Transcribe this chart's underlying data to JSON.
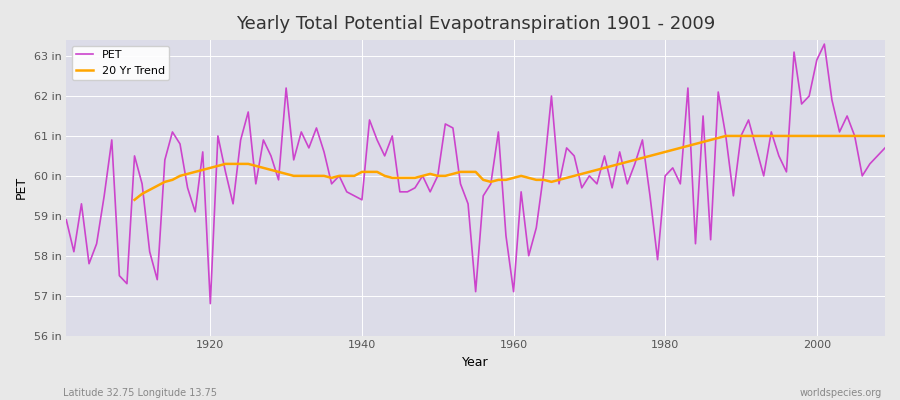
{
  "title": "Yearly Total Potential Evapotranspiration 1901 - 2009",
  "xlabel": "Year",
  "ylabel": "PET",
  "subtitle_left": "Latitude 32.75 Longitude 13.75",
  "subtitle_right": "worldspecies.org",
  "ylim": [
    56,
    63.4
  ],
  "yticks": [
    56,
    57,
    58,
    59,
    60,
    61,
    62,
    63
  ],
  "ytick_labels": [
    "56 in",
    "57 in",
    "58 in",
    "59 in",
    "60 in",
    "61 in",
    "62 in",
    "63 in"
  ],
  "pet_color": "#cc44cc",
  "trend_color": "#FFA500",
  "bg_color": "#e8e8e8",
  "plot_bg_color": "#dcdce8",
  "years": [
    1901,
    1902,
    1903,
    1904,
    1905,
    1906,
    1907,
    1908,
    1909,
    1910,
    1911,
    1912,
    1913,
    1914,
    1915,
    1916,
    1917,
    1918,
    1919,
    1920,
    1921,
    1922,
    1923,
    1924,
    1925,
    1926,
    1927,
    1928,
    1929,
    1930,
    1931,
    1932,
    1933,
    1934,
    1935,
    1936,
    1937,
    1938,
    1939,
    1940,
    1941,
    1942,
    1943,
    1944,
    1945,
    1946,
    1947,
    1948,
    1949,
    1950,
    1951,
    1952,
    1953,
    1954,
    1955,
    1956,
    1957,
    1958,
    1959,
    1960,
    1961,
    1962,
    1963,
    1964,
    1965,
    1966,
    1967,
    1968,
    1969,
    1970,
    1971,
    1972,
    1973,
    1974,
    1975,
    1976,
    1977,
    1978,
    1979,
    1980,
    1981,
    1982,
    1983,
    1984,
    1985,
    1986,
    1987,
    1988,
    1989,
    1990,
    1991,
    1992,
    1993,
    1994,
    1995,
    1996,
    1997,
    1998,
    1999,
    2000,
    2001,
    2002,
    2003,
    2004,
    2005,
    2006,
    2007,
    2008,
    2009
  ],
  "pet": [
    58.9,
    58.1,
    59.3,
    57.8,
    58.3,
    59.5,
    60.9,
    57.5,
    57.3,
    60.5,
    59.8,
    58.1,
    57.4,
    60.4,
    61.1,
    60.8,
    59.7,
    59.1,
    60.6,
    56.8,
    61.0,
    60.1,
    59.3,
    60.9,
    61.6,
    59.8,
    60.9,
    60.5,
    59.9,
    62.2,
    60.4,
    61.1,
    60.7,
    61.2,
    60.6,
    59.8,
    60.0,
    59.6,
    59.5,
    59.4,
    61.4,
    60.9,
    60.5,
    61.0,
    59.6,
    59.6,
    59.7,
    60.0,
    59.6,
    60.0,
    61.3,
    61.2,
    59.8,
    59.3,
    57.1,
    59.5,
    59.8,
    61.1,
    58.5,
    57.1,
    59.6,
    58.0,
    58.7,
    60.1,
    62.0,
    59.8,
    60.7,
    60.5,
    59.7,
    60.0,
    59.8,
    60.5,
    59.7,
    60.6,
    59.8,
    60.3,
    60.9,
    59.5,
    57.9,
    60.0,
    60.2,
    59.8,
    62.2,
    58.3,
    61.5,
    58.4,
    62.1,
    61.0,
    59.5,
    61.0,
    61.4,
    60.7,
    60.0,
    61.1,
    60.5,
    60.1,
    63.1,
    61.8,
    62.0,
    62.9,
    63.3,
    61.9,
    61.1,
    61.5,
    61.0,
    60.0,
    60.3,
    60.5,
    60.7
  ],
  "trend_years": [
    1910,
    1911,
    1912,
    1913,
    1914,
    1915,
    1916,
    1917,
    1918,
    1919,
    1920,
    1921,
    1922,
    1923,
    1924,
    1925,
    1926,
    1927,
    1928,
    1929,
    1930,
    1931,
    1932,
    1933,
    1934,
    1935,
    1936,
    1937,
    1938,
    1939,
    1940,
    1941,
    1942,
    1943,
    1944,
    1945,
    1946,
    1947,
    1948,
    1949,
    1950,
    1951,
    1952,
    1953,
    1954,
    1955,
    1956,
    1957,
    1958,
    1959,
    1960,
    1961,
    1962,
    1963,
    1964,
    1965,
    1966,
    1967,
    1968,
    1969,
    1970,
    1971,
    1972,
    1973,
    1974,
    1975,
    1976,
    1977,
    1978,
    1979,
    1980,
    1981,
    1982,
    1983,
    1984,
    1985,
    1986,
    1987,
    1988,
    1989,
    1990,
    1991,
    1992,
    1993,
    1994,
    1995,
    1996,
    1997,
    1998,
    1999,
    2000,
    2001,
    2002,
    2003,
    2004,
    2005,
    2006,
    2007,
    2008,
    2009
  ],
  "trend": [
    59.4,
    59.55,
    59.65,
    59.75,
    59.85,
    59.9,
    60.0,
    60.05,
    60.1,
    60.15,
    60.2,
    60.25,
    60.3,
    60.3,
    60.3,
    60.3,
    60.25,
    60.2,
    60.15,
    60.1,
    60.05,
    60.0,
    60.0,
    60.0,
    60.0,
    60.0,
    59.95,
    60.0,
    60.0,
    60.0,
    60.1,
    60.1,
    60.1,
    60.0,
    59.95,
    59.95,
    59.95,
    59.95,
    60.0,
    60.05,
    60.0,
    60.0,
    60.05,
    60.1,
    60.1,
    60.1,
    59.9,
    59.85,
    59.9,
    59.9,
    59.95,
    60.0,
    59.95,
    59.9,
    59.9,
    59.85,
    59.9,
    59.95,
    60.0,
    60.05,
    60.1,
    60.15,
    60.2,
    60.25,
    60.3,
    60.35,
    60.4,
    60.45,
    60.5,
    60.55,
    60.6,
    60.65,
    60.7,
    60.75,
    60.8,
    60.85,
    60.9,
    60.95,
    61.0,
    61.0,
    61.0,
    61.0,
    61.0,
    61.0,
    61.0,
    61.0,
    61.0,
    61.0,
    61.0,
    61.0,
    61.0,
    61.0,
    61.0,
    61.0,
    61.0,
    61.0,
    61.0,
    61.0,
    61.0,
    61.0
  ]
}
